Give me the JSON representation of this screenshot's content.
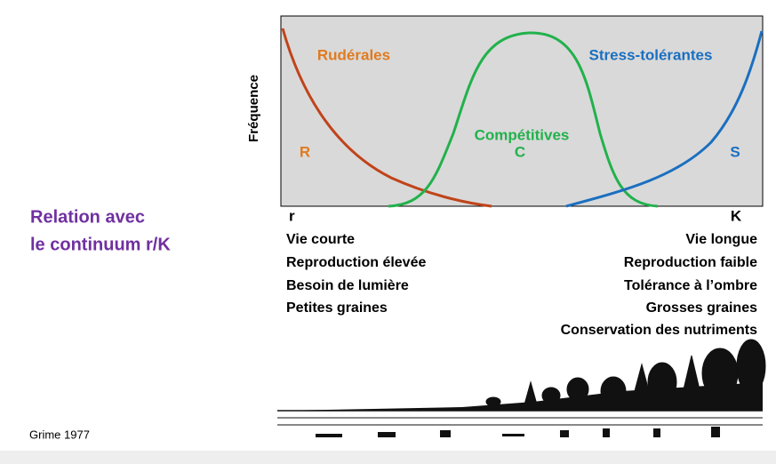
{
  "title": {
    "lines": [
      "Relation avec",
      "le continuum r/K"
    ]
  },
  "diagram": {
    "y_axis_label": "Fréquence",
    "curves": [
      {
        "name": "Rudérales",
        "letter": "R"
      },
      {
        "name": "Compétitives",
        "letter": "C"
      },
      {
        "name": "Stress-tolérantes",
        "letter": "S"
      }
    ],
    "x_axis_ends": [
      "r",
      "K"
    ]
  },
  "traits": {
    "r": [
      "Vie courte",
      "Reproduction élevée",
      "Besoin de lumière",
      "Petites graines"
    ],
    "K": [
      "Vie longue",
      "Reproduction faible",
      "Tolérance à l’ombre",
      "Grosses graines",
      "Conservation des nutriments"
    ]
  },
  "citation": "Grime 1977"
}
